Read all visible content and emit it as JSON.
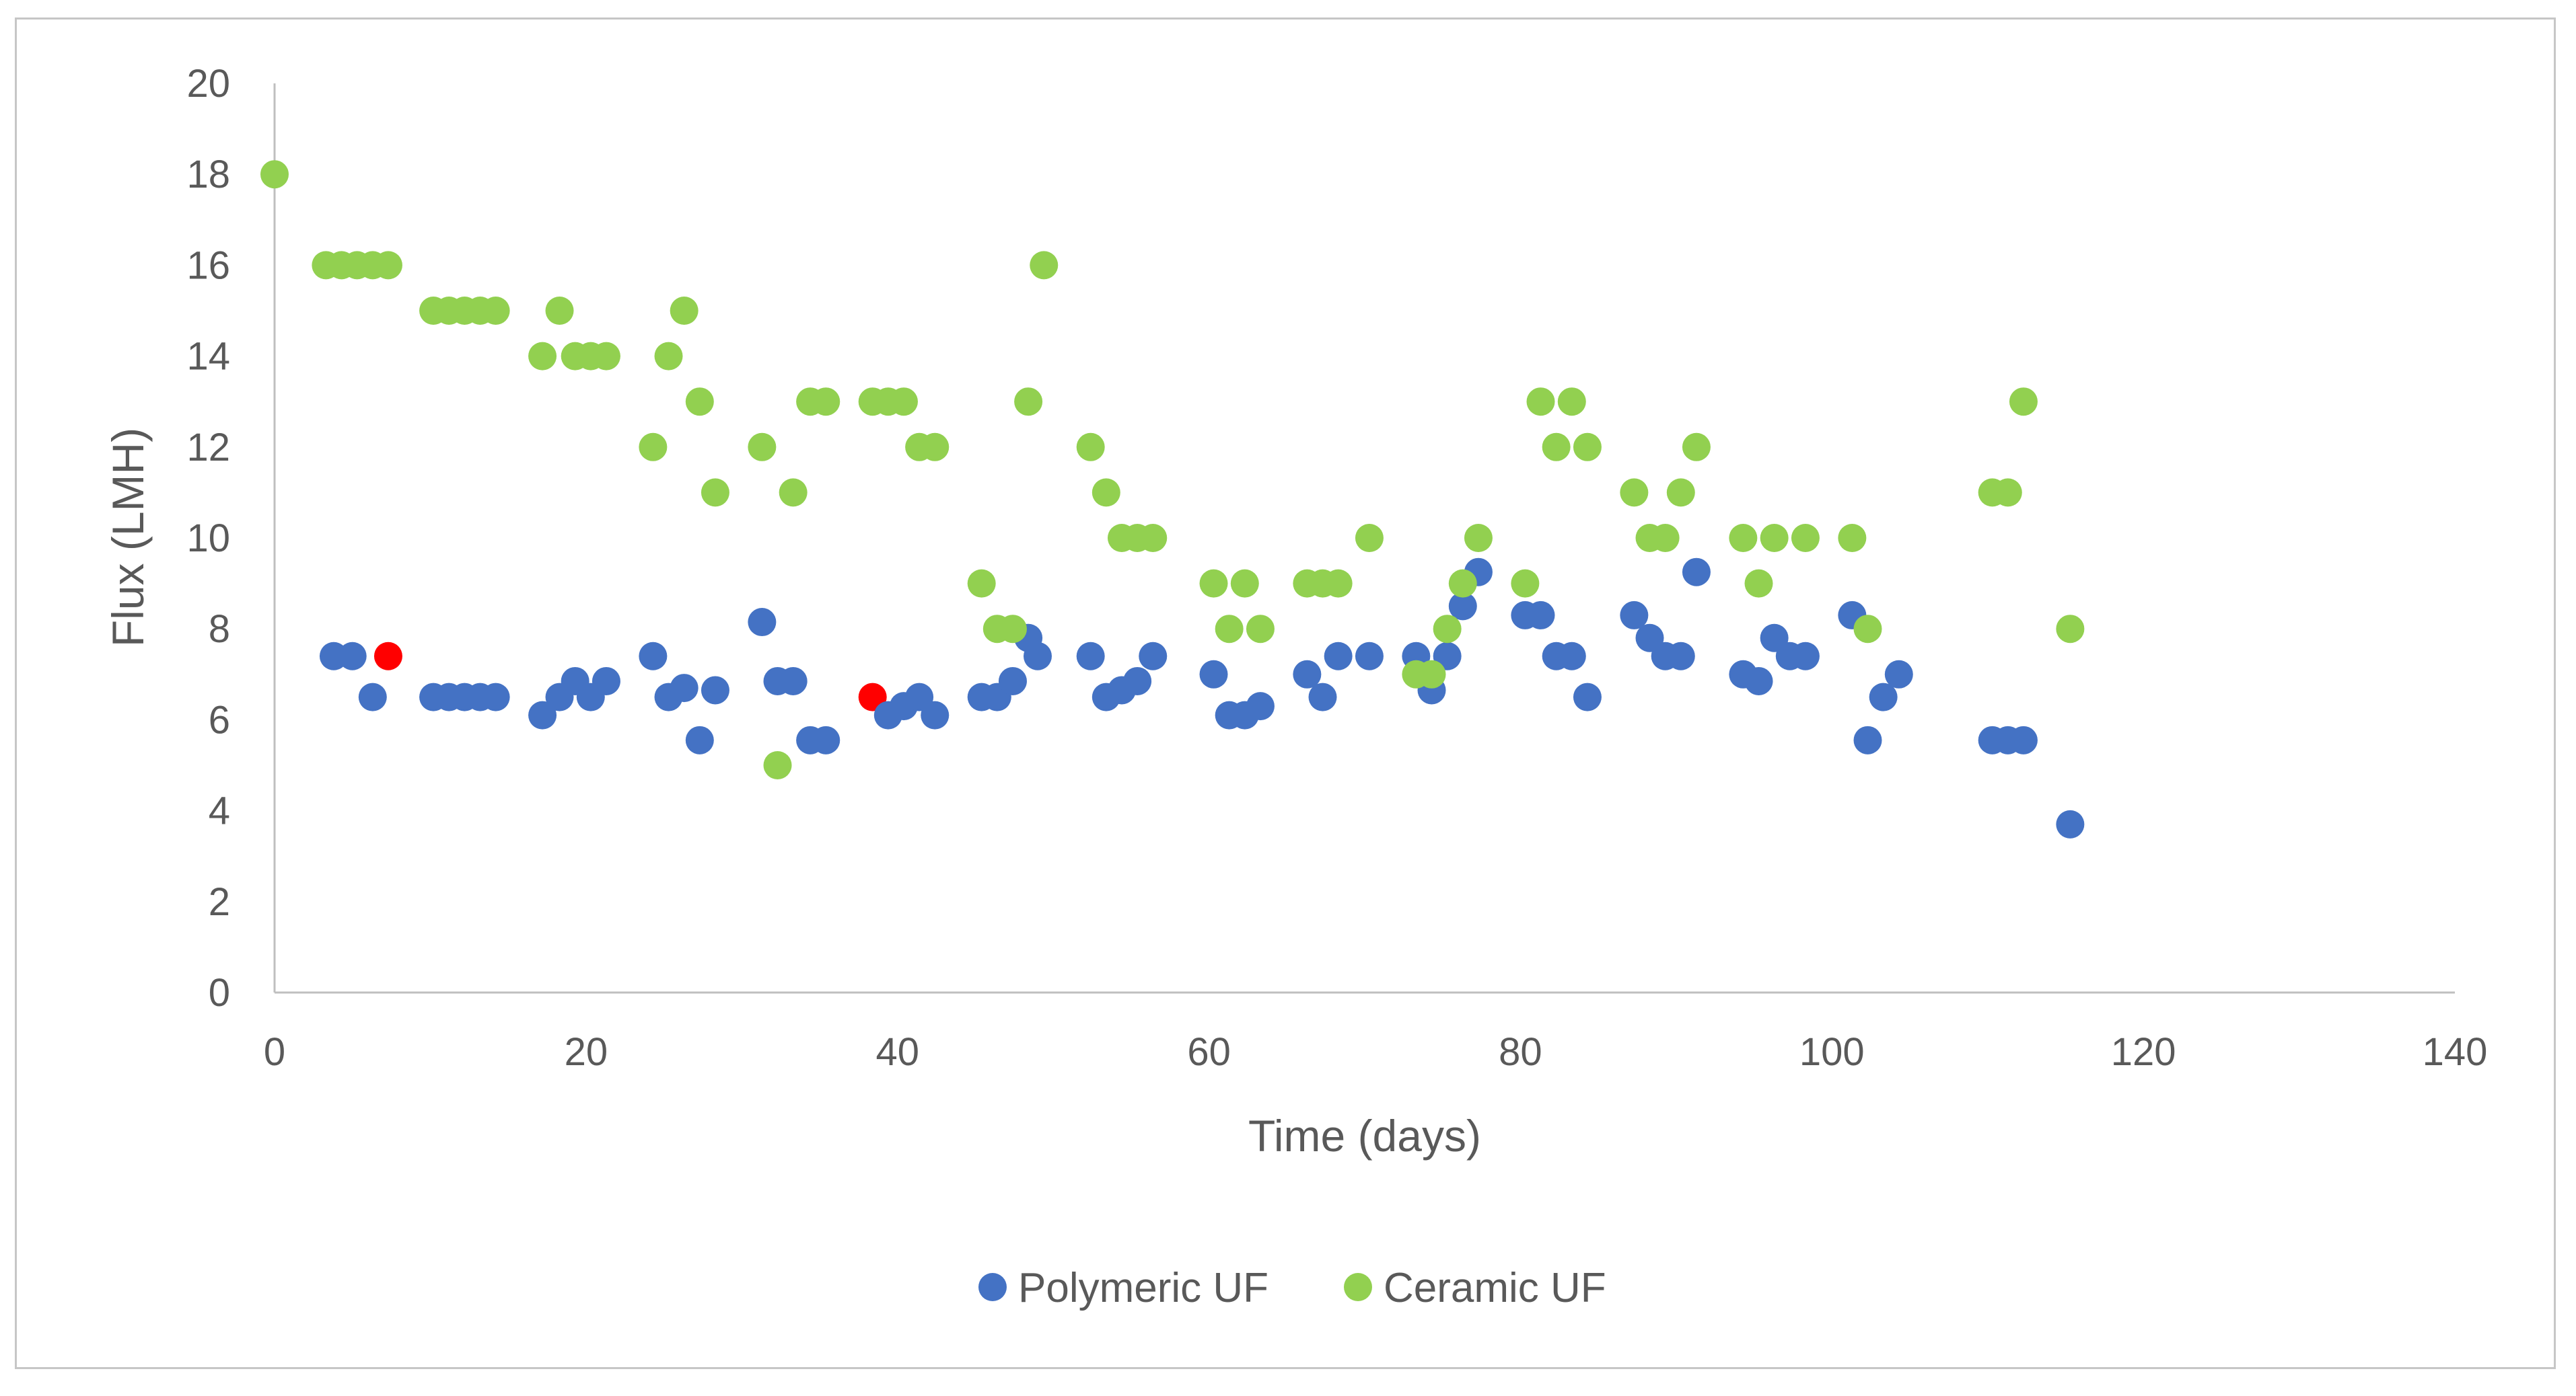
{
  "chart_data": {
    "type": "scatter",
    "title": "",
    "xlabel": "Time (days)",
    "ylabel": "Flux (LMH)",
    "xlim": [
      0,
      140
    ],
    "ylim": [
      0,
      20
    ],
    "xticks": [
      0,
      20,
      40,
      60,
      80,
      100,
      120,
      140
    ],
    "yticks": [
      0,
      2,
      4,
      6,
      8,
      10,
      12,
      14,
      16,
      18,
      20
    ],
    "grid": false,
    "legend_position": "bottom",
    "series": [
      {
        "name": "Polymeric UF",
        "color": "#4472c4",
        "points": [
          {
            "x": 3.8,
            "y": 7.4
          },
          {
            "x": 5,
            "y": 7.4
          },
          {
            "x": 6.3,
            "y": 6.5
          },
          {
            "x": 7.3,
            "y": 7.4,
            "color": "#ff0000"
          },
          {
            "x": 10.2,
            "y": 6.5
          },
          {
            "x": 11.2,
            "y": 6.5
          },
          {
            "x": 12.2,
            "y": 6.5
          },
          {
            "x": 13.2,
            "y": 6.5
          },
          {
            "x": 14.2,
            "y": 6.5
          },
          {
            "x": 17.2,
            "y": 6.1
          },
          {
            "x": 18.3,
            "y": 6.5
          },
          {
            "x": 19.3,
            "y": 6.85
          },
          {
            "x": 20.3,
            "y": 6.5
          },
          {
            "x": 21.3,
            "y": 6.85
          },
          {
            "x": 24.3,
            "y": 7.4
          },
          {
            "x": 25.3,
            "y": 6.5
          },
          {
            "x": 26.3,
            "y": 6.7
          },
          {
            "x": 27.3,
            "y": 5.55
          },
          {
            "x": 28.3,
            "y": 6.65
          },
          {
            "x": 31.3,
            "y": 8.15
          },
          {
            "x": 32.3,
            "y": 6.85
          },
          {
            "x": 33.3,
            "y": 6.85
          },
          {
            "x": 34.4,
            "y": 5.55
          },
          {
            "x": 35.4,
            "y": 5.55
          },
          {
            "x": 38.4,
            "y": 6.5,
            "color": "#ff0000"
          },
          {
            "x": 39.4,
            "y": 6.1
          },
          {
            "x": 40.4,
            "y": 6.3
          },
          {
            "x": 41.4,
            "y": 6.5
          },
          {
            "x": 42.4,
            "y": 6.1
          },
          {
            "x": 45.4,
            "y": 6.5
          },
          {
            "x": 46.4,
            "y": 6.5
          },
          {
            "x": 47.4,
            "y": 6.85
          },
          {
            "x": 48.4,
            "y": 7.8
          },
          {
            "x": 49,
            "y": 7.4
          },
          {
            "x": 52.4,
            "y": 7.4
          },
          {
            "x": 53.4,
            "y": 6.5
          },
          {
            "x": 54.4,
            "y": 6.65
          },
          {
            "x": 55.4,
            "y": 6.85
          },
          {
            "x": 56.4,
            "y": 7.4
          },
          {
            "x": 60.3,
            "y": 7.0
          },
          {
            "x": 61.3,
            "y": 6.1
          },
          {
            "x": 62.3,
            "y": 6.1
          },
          {
            "x": 63.3,
            "y": 6.3
          },
          {
            "x": 66.3,
            "y": 7.0
          },
          {
            "x": 67.3,
            "y": 6.5
          },
          {
            "x": 68.3,
            "y": 7.4
          },
          {
            "x": 70.3,
            "y": 7.4
          },
          {
            "x": 73.3,
            "y": 7.4
          },
          {
            "x": 74.3,
            "y": 6.65
          },
          {
            "x": 75.3,
            "y": 7.4
          },
          {
            "x": 76.3,
            "y": 8.5
          },
          {
            "x": 77.3,
            "y": 9.25
          },
          {
            "x": 80.3,
            "y": 8.3
          },
          {
            "x": 81.3,
            "y": 8.3
          },
          {
            "x": 82.3,
            "y": 7.4
          },
          {
            "x": 83.3,
            "y": 7.4
          },
          {
            "x": 84.3,
            "y": 6.5
          },
          {
            "x": 87.3,
            "y": 8.3
          },
          {
            "x": 88.3,
            "y": 7.8
          },
          {
            "x": 89.3,
            "y": 7.4
          },
          {
            "x": 90.3,
            "y": 7.4
          },
          {
            "x": 91.3,
            "y": 9.25
          },
          {
            "x": 94.3,
            "y": 7.0
          },
          {
            "x": 95.3,
            "y": 6.85
          },
          {
            "x": 96.3,
            "y": 7.8
          },
          {
            "x": 97.3,
            "y": 7.4
          },
          {
            "x": 98.3,
            "y": 7.4
          },
          {
            "x": 101.3,
            "y": 8.3
          },
          {
            "x": 102.3,
            "y": 5.55
          },
          {
            "x": 103.3,
            "y": 6.5
          },
          {
            "x": 104.3,
            "y": 7.0
          },
          {
            "x": 110.3,
            "y": 5.55
          },
          {
            "x": 111.3,
            "y": 5.55
          },
          {
            "x": 112.3,
            "y": 5.55
          },
          {
            "x": 115.3,
            "y": 3.7
          }
        ]
      },
      {
        "name": "Ceramic UF",
        "color": "#92d050",
        "points": [
          {
            "x": 0,
            "y": 18
          },
          {
            "x": 3.3,
            "y": 16
          },
          {
            "x": 4.3,
            "y": 16
          },
          {
            "x": 5.3,
            "y": 16
          },
          {
            "x": 6.3,
            "y": 16
          },
          {
            "x": 7.3,
            "y": 16
          },
          {
            "x": 10.2,
            "y": 15
          },
          {
            "x": 11.2,
            "y": 15
          },
          {
            "x": 12.2,
            "y": 15
          },
          {
            "x": 13.2,
            "y": 15
          },
          {
            "x": 14.2,
            "y": 15
          },
          {
            "x": 17.2,
            "y": 14
          },
          {
            "x": 18.3,
            "y": 15
          },
          {
            "x": 19.3,
            "y": 14
          },
          {
            "x": 20.3,
            "y": 14
          },
          {
            "x": 21.3,
            "y": 14
          },
          {
            "x": 24.3,
            "y": 12
          },
          {
            "x": 25.3,
            "y": 14
          },
          {
            "x": 26.3,
            "y": 15
          },
          {
            "x": 27.3,
            "y": 13
          },
          {
            "x": 28.3,
            "y": 11
          },
          {
            "x": 31.3,
            "y": 12
          },
          {
            "x": 32.3,
            "y": 5
          },
          {
            "x": 33.3,
            "y": 11
          },
          {
            "x": 34.4,
            "y": 13
          },
          {
            "x": 35.4,
            "y": 13
          },
          {
            "x": 38.4,
            "y": 13
          },
          {
            "x": 39.4,
            "y": 13
          },
          {
            "x": 40.4,
            "y": 13
          },
          {
            "x": 41.4,
            "y": 12
          },
          {
            "x": 42.4,
            "y": 12
          },
          {
            "x": 45.4,
            "y": 9
          },
          {
            "x": 46.4,
            "y": 8
          },
          {
            "x": 47.4,
            "y": 8
          },
          {
            "x": 48.4,
            "y": 13
          },
          {
            "x": 49.4,
            "y": 16
          },
          {
            "x": 52.4,
            "y": 12
          },
          {
            "x": 53.4,
            "y": 11
          },
          {
            "x": 54.4,
            "y": 10
          },
          {
            "x": 55.4,
            "y": 10
          },
          {
            "x": 56.4,
            "y": 10
          },
          {
            "x": 60.3,
            "y": 9
          },
          {
            "x": 61.3,
            "y": 8
          },
          {
            "x": 62.3,
            "y": 9
          },
          {
            "x": 63.3,
            "y": 8
          },
          {
            "x": 66.3,
            "y": 9
          },
          {
            "x": 67.3,
            "y": 9
          },
          {
            "x": 68.3,
            "y": 9
          },
          {
            "x": 70.3,
            "y": 10
          },
          {
            "x": 73.3,
            "y": 7
          },
          {
            "x": 74.3,
            "y": 7
          },
          {
            "x": 75.3,
            "y": 8
          },
          {
            "x": 76.3,
            "y": 9
          },
          {
            "x": 77.3,
            "y": 10
          },
          {
            "x": 80.3,
            "y": 9
          },
          {
            "x": 81.3,
            "y": 13
          },
          {
            "x": 82.3,
            "y": 12
          },
          {
            "x": 83.3,
            "y": 13
          },
          {
            "x": 84.3,
            "y": 12
          },
          {
            "x": 87.3,
            "y": 11
          },
          {
            "x": 88.3,
            "y": 10
          },
          {
            "x": 89.3,
            "y": 10
          },
          {
            "x": 90.3,
            "y": 11
          },
          {
            "x": 91.3,
            "y": 12
          },
          {
            "x": 94.3,
            "y": 10
          },
          {
            "x": 95.3,
            "y": 9
          },
          {
            "x": 96.3,
            "y": 10
          },
          {
            "x": 98.3,
            "y": 10
          },
          {
            "x": 101.3,
            "y": 10
          },
          {
            "x": 102.3,
            "y": 8
          },
          {
            "x": 110.3,
            "y": 11
          },
          {
            "x": 111.3,
            "y": 11
          },
          {
            "x": 112.3,
            "y": 13
          },
          {
            "x": 115.3,
            "y": 8
          }
        ]
      }
    ]
  }
}
